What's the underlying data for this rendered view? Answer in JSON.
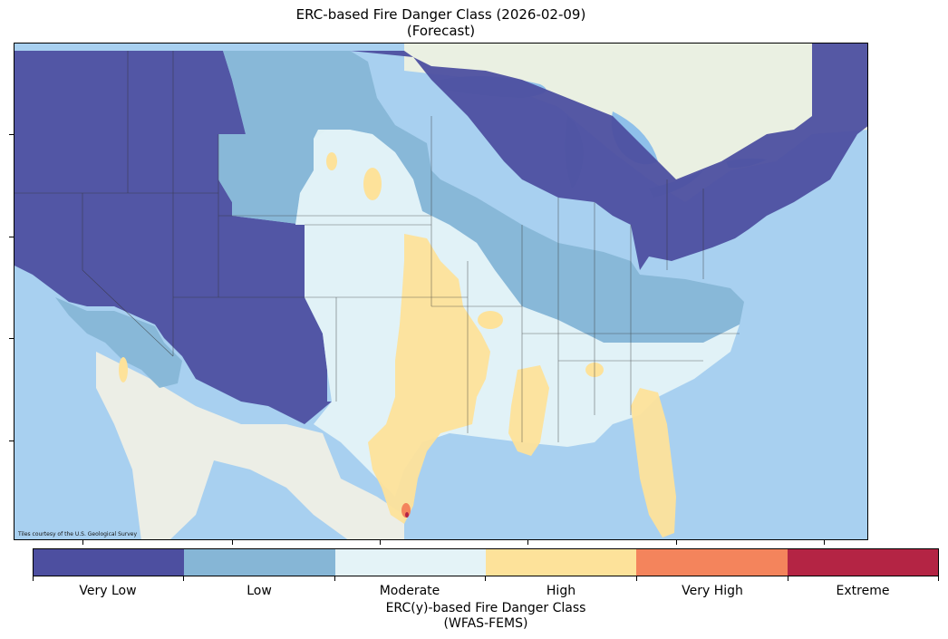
{
  "title": {
    "line1": "ERC-based Fire Danger Class (2026-02-09)",
    "line2": "(Forecast)"
  },
  "map": {
    "attribution": "Tiles courtesy of the U.S. Geological Survey",
    "colors": {
      "ocean": "#a8d0f0",
      "land": "#eef0e8",
      "lake": "#8fc0ea"
    }
  },
  "legend": {
    "classes": [
      {
        "label": "Very Low",
        "color": "#4d4fa0"
      },
      {
        "label": "Low",
        "color": "#86b6d6"
      },
      {
        "label": "Moderate",
        "color": "#e4f3f7"
      },
      {
        "label": "High",
        "color": "#fde29a"
      },
      {
        "label": "Very High",
        "color": "#f4845c"
      },
      {
        "label": "Extreme",
        "color": "#b42444"
      }
    ],
    "title_line1": "ERC(y)-based Fire Danger Class",
    "title_line2": "(WFAS-FEMS)"
  }
}
